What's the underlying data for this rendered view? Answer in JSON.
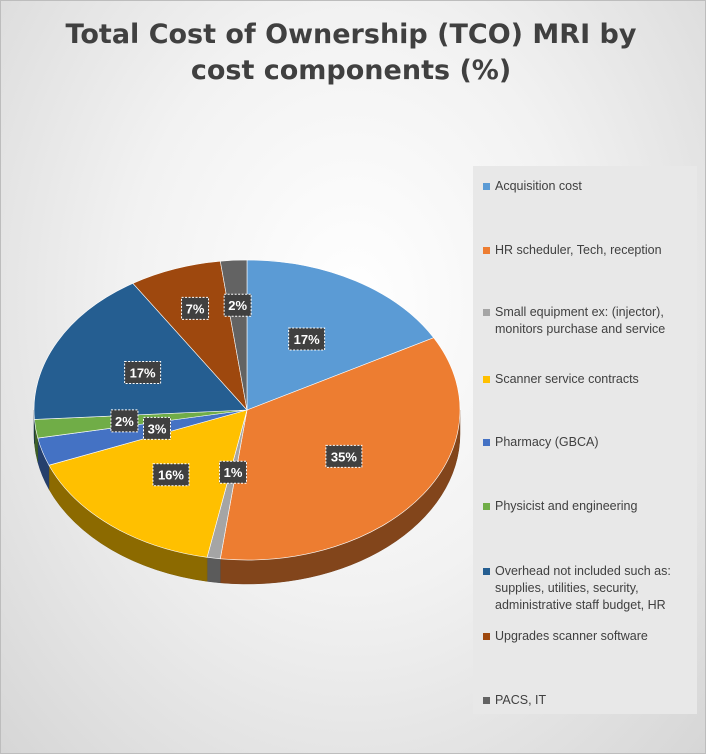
{
  "title": "Total Cost of Ownership (TCO) MRI by cost components (%)",
  "chart_data": {
    "type": "pie",
    "title": "Total Cost of Ownership (TCO) MRI by cost components (%)",
    "legend_position": "right",
    "label_format": "percent",
    "slices": [
      {
        "label": "Acquisition cost",
        "value": 17,
        "display": "17%",
        "color": "#5b9bd5"
      },
      {
        "label": "HR scheduler, Tech, reception",
        "value": 35,
        "display": "35%",
        "color": "#ed7d31"
      },
      {
        "label": "Small equipment ex: (injector), monitors purchase and service",
        "value": 1,
        "display": "1%",
        "color": "#a5a5a5"
      },
      {
        "label": "Scanner service contracts",
        "value": 16,
        "display": "16%",
        "color": "#ffc000"
      },
      {
        "label": "Pharmacy (GBCA)",
        "value": 3,
        "display": "3%",
        "color": "#4472c4"
      },
      {
        "label": "Physicist and engineering",
        "value": 2,
        "display": "2%",
        "color": "#70ad47"
      },
      {
        "label": "Overhead not included such as: supplies, utilities, security, administrative staff budget, HR",
        "value": 17,
        "display": "17%",
        "color": "#255e91"
      },
      {
        "label": "Upgrades scanner software",
        "value": 7,
        "display": "7%",
        "color": "#9e480e"
      },
      {
        "label": "PACS, IT",
        "value": 2,
        "display": "2%",
        "color": "#636363"
      }
    ]
  }
}
